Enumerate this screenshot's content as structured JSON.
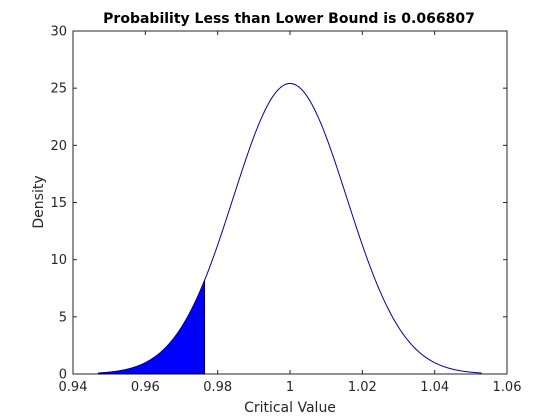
{
  "chart_data": {
    "type": "area",
    "title": "Probability Less than Lower Bound is 0.066807",
    "xlabel": "Critical Value",
    "ylabel": "Density",
    "xlim": [
      0.94,
      1.06
    ],
    "ylim": [
      0,
      30
    ],
    "x_ticks": [
      0.94,
      0.96,
      0.98,
      1,
      1.02,
      1.04,
      1.06
    ],
    "x_tick_labels": [
      "0.94",
      "0.96",
      "0.98",
      "1",
      "1.02",
      "1.04",
      "1.06"
    ],
    "y_ticks": [
      0,
      5,
      10,
      15,
      20,
      25,
      30
    ],
    "y_tick_labels": [
      "0",
      "5",
      "10",
      "15",
      "20",
      "25",
      "30"
    ],
    "grid": false,
    "distribution": {
      "name": "normal",
      "mean": 1.0,
      "sd": 0.0157
    },
    "curve_x_range": [
      0.947,
      1.053
    ],
    "lower_bound": 0.9764,
    "probability_below_bound": 0.066807,
    "curve_color": "#0000a0",
    "fill_color": "#0000ff"
  }
}
